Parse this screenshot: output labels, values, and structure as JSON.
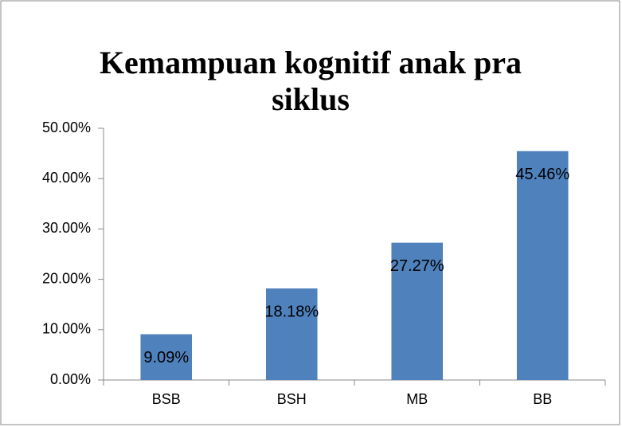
{
  "chart_data": {
    "type": "bar",
    "title": "Kemampuan kognitif anak pra siklus",
    "categories": [
      "BSB",
      "BSH",
      "MB",
      "BB"
    ],
    "values": [
      9.09,
      18.18,
      27.27,
      45.46
    ],
    "value_labels": [
      "9.09%",
      "18.18%",
      "27.27%",
      "45.46%"
    ],
    "color": "#4f81bd",
    "ylim": [
      0,
      50
    ],
    "yticks": [
      {
        "value": 0,
        "label": "0.00%"
      },
      {
        "value": 10,
        "label": "10.00%"
      },
      {
        "value": 20,
        "label": "20.00%"
      },
      {
        "value": 30,
        "label": "30.00%"
      },
      {
        "value": 40,
        "label": "40.00%"
      },
      {
        "value": 50,
        "label": "50.00%"
      }
    ],
    "grid": false
  }
}
